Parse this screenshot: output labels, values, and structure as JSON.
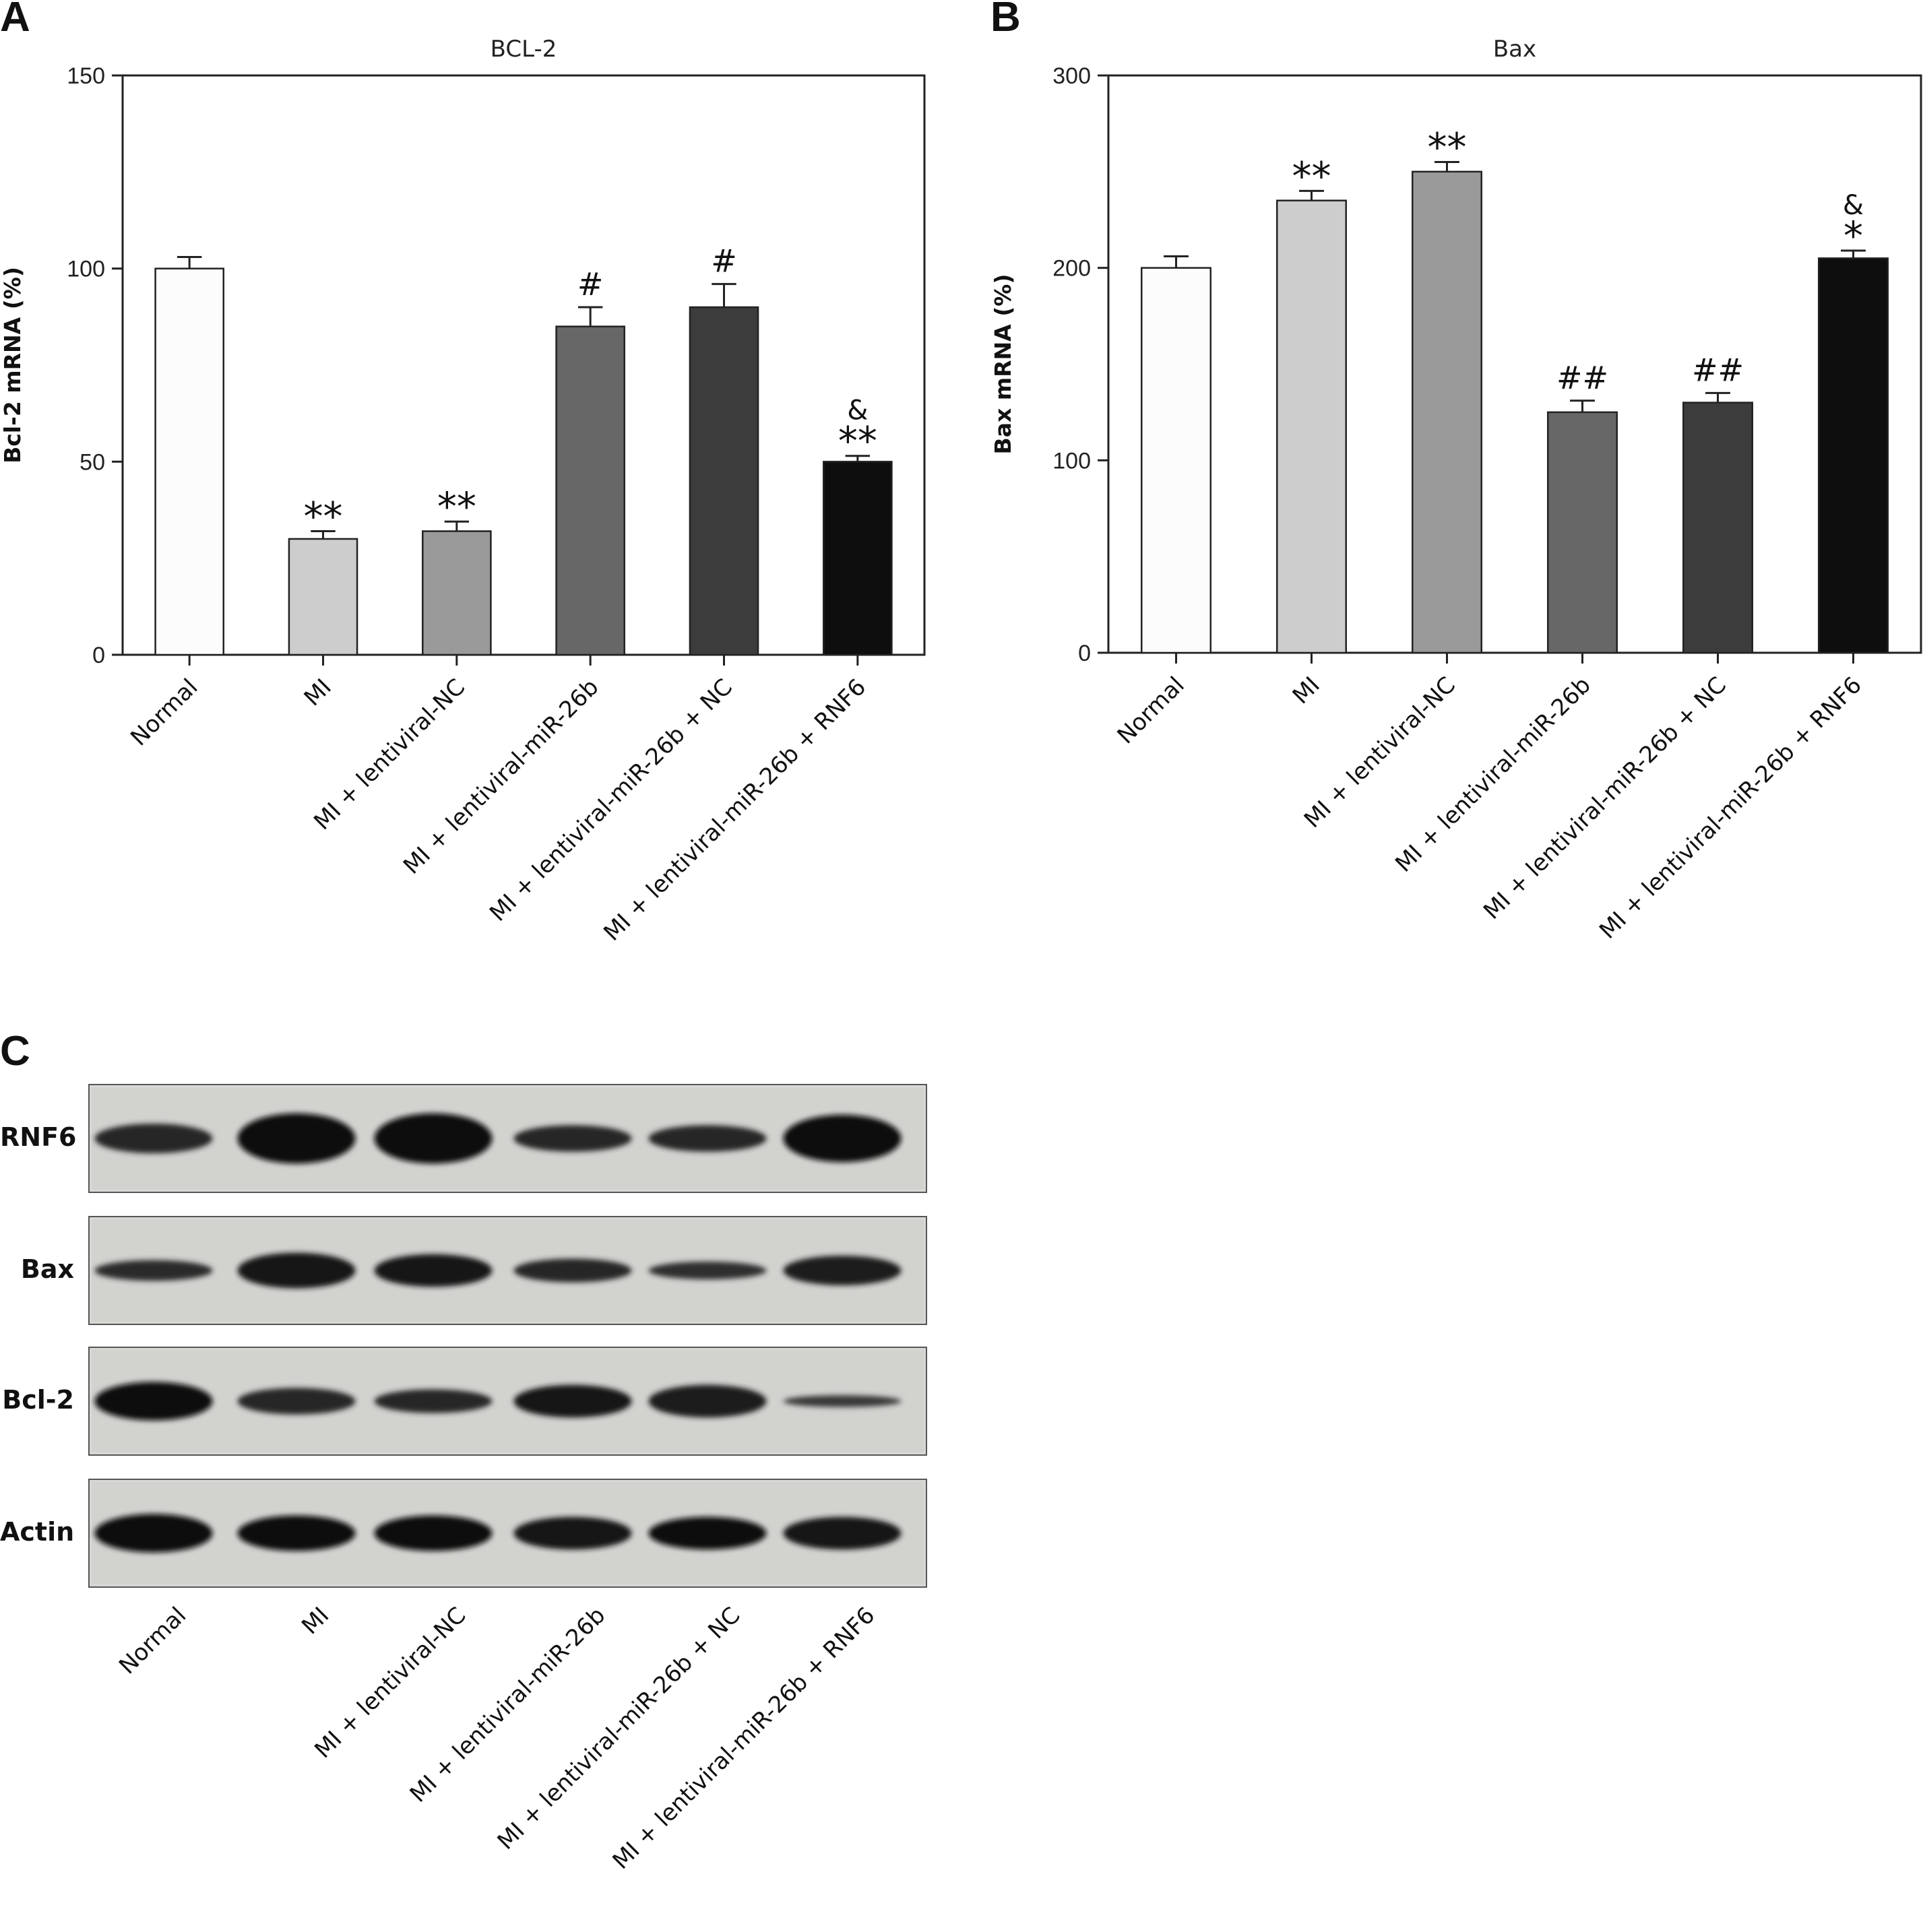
{
  "panels": [
    {
      "letter": "A"
    },
    {
      "letter": "B"
    },
    {
      "letter": "C"
    }
  ],
  "chart_data": [
    {
      "type": "bar",
      "title": "BCL-2",
      "ylabel": "Bcl-2 mRNA (%)",
      "xlabel": "",
      "ylim": [
        0,
        150
      ],
      "yticks": [
        0,
        50,
        100,
        150
      ],
      "grid": false,
      "categories": [
        "Normal",
        "MI",
        "MI + lentiviral-NC",
        "MI + lentiviral-miR-26b",
        "MI + lentiviral-miR-26b + NC",
        "MI + lentiviral-miR-26b + RNF6"
      ],
      "values": [
        100,
        30,
        32,
        85,
        90,
        50
      ],
      "errors": [
        3,
        2,
        2.5,
        5,
        6,
        1.5
      ],
      "annotations": [
        "",
        "**",
        "**",
        "#",
        "#",
        "**"
      ],
      "annotations_top": [
        "",
        "",
        "",
        "",
        "",
        "&"
      ],
      "colors": [
        "#fcfcfc",
        "#cdcdcd",
        "#9a9a9a",
        "#676767",
        "#3c3c3c",
        "#0e0e0e"
      ]
    },
    {
      "type": "bar",
      "title": "Bax",
      "ylabel": "Bax mRNA (%)",
      "xlabel": "",
      "ylim": [
        0,
        300
      ],
      "yticks": [
        0,
        100,
        200,
        300
      ],
      "grid": false,
      "categories": [
        "Normal",
        "MI",
        "MI + lentiviral-NC",
        "MI + lentiviral-miR-26b",
        "MI + lentiviral-miR-26b + NC",
        "MI + lentiviral-miR-26b + RNF6"
      ],
      "values": [
        200,
        235,
        250,
        125,
        130,
        205
      ],
      "errors": [
        6,
        5,
        5,
        6,
        5,
        4
      ],
      "annotations": [
        "",
        "**",
        "**",
        "##",
        "##",
        "*"
      ],
      "annotations_top": [
        "",
        "",
        "",
        "",
        "",
        "&"
      ],
      "colors": [
        "#fcfcfc",
        "#cdcdcd",
        "#9a9a9a",
        "#676767",
        "#3c3c3c",
        "#0e0e0e"
      ]
    }
  ],
  "blot": {
    "rows": [
      {
        "label": "RNF6",
        "intensity": [
          0.55,
          1.0,
          1.0,
          0.5,
          0.5,
          0.95
        ],
        "thickness": [
          0.5,
          0.85,
          0.85,
          0.45,
          0.45,
          0.8
        ]
      },
      {
        "label": "Bax",
        "intensity": [
          0.45,
          0.85,
          0.75,
          0.5,
          0.4,
          0.7
        ],
        "thickness": [
          0.35,
          0.6,
          0.55,
          0.4,
          0.3,
          0.5
        ]
      },
      {
        "label": "Bcl-2",
        "intensity": [
          1.0,
          0.55,
          0.5,
          0.75,
          0.7,
          0.25
        ],
        "thickness": [
          0.65,
          0.45,
          0.4,
          0.55,
          0.55,
          0.2
        ]
      },
      {
        "label": "Actin",
        "intensity": [
          0.95,
          0.9,
          0.9,
          0.85,
          0.9,
          0.85
        ],
        "thickness": [
          0.65,
          0.6,
          0.6,
          0.55,
          0.55,
          0.55
        ]
      }
    ],
    "lanes": [
      "Normal",
      "MI",
      "MI + lentiviral-NC",
      "MI + lentiviral-miR-26b",
      "MI + lentiviral-miR-26b + NC",
      "MI + lentiviral-miR-26b + RNF6"
    ]
  }
}
